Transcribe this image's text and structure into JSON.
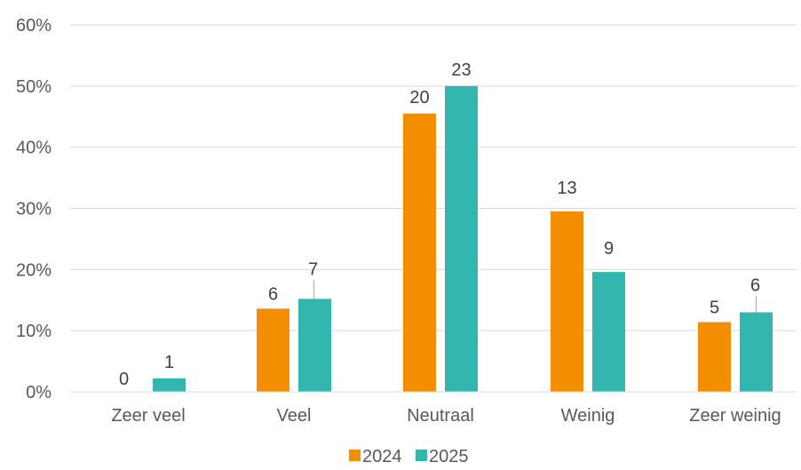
{
  "chart_data": {
    "type": "bar",
    "categories": [
      "Zeer veel",
      "Veel",
      "Neutraal",
      "Weinig",
      "Zeer weinig"
    ],
    "series": [
      {
        "name": "2024",
        "color": "#F28E00",
        "values_percent": [
          0,
          13.6,
          45.5,
          29.5,
          11.4
        ],
        "data_labels": [
          "0",
          "6",
          "20",
          "13",
          "5"
        ]
      },
      {
        "name": "2025",
        "color": "#33B5B0",
        "values_percent": [
          2.2,
          15.2,
          50.0,
          19.6,
          13.0
        ],
        "data_labels": [
          "1",
          "7",
          "23",
          "9",
          "6"
        ]
      }
    ],
    "y_ticks": [
      "0%",
      "10%",
      "20%",
      "30%",
      "40%",
      "50%",
      "60%"
    ],
    "ylim": [
      0,
      60
    ],
    "grid": true,
    "legend": "bottom-center",
    "gridline_color": "#D9D9D9"
  }
}
